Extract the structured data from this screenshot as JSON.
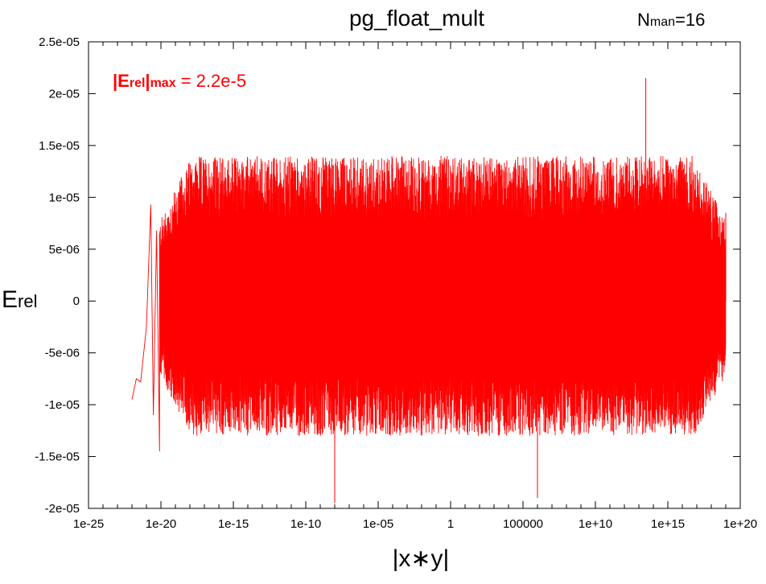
{
  "chart_data": {
    "type": "line",
    "title": "pg_float_mult",
    "corner_label": {
      "main": "N",
      "sub": "man",
      "value": "=16"
    },
    "xlabel": "|x∗y|",
    "ylabel": {
      "main": "E",
      "sub": "rel"
    },
    "annotation": {
      "main": "|E",
      "sub1": "rel",
      "mid": "|",
      "sub2": "max",
      "value": " = 2.2e-5"
    },
    "x_scale": "log",
    "xlim": [
      1e-25,
      1e+20
    ],
    "ylim": [
      -2e-05,
      2.5e-05
    ],
    "grid": false,
    "legend": "none",
    "x_ticks": [
      {
        "value": 1e-25,
        "label": "1e-25"
      },
      {
        "value": 1e-20,
        "label": "1e-20"
      },
      {
        "value": 1e-15,
        "label": "1e-15"
      },
      {
        "value": 1e-10,
        "label": "1e-10"
      },
      {
        "value": 1e-05,
        "label": "1e-05"
      },
      {
        "value": 1,
        "label": "1"
      },
      {
        "value": 100000,
        "label": "100000"
      },
      {
        "value": 10000000000.0,
        "label": "1e+10"
      },
      {
        "value": 1000000000000000.0,
        "label": "1e+15"
      },
      {
        "value": 1e+20,
        "label": "1e+20"
      }
    ],
    "y_ticks": [
      {
        "value": 2.5e-05,
        "label": "2.5e-05"
      },
      {
        "value": 2e-05,
        "label": "2e-05"
      },
      {
        "value": 1.5e-05,
        "label": "1.5e-05"
      },
      {
        "value": 1e-05,
        "label": "1e-05"
      },
      {
        "value": 5e-06,
        "label": "5e-06"
      },
      {
        "value": 0,
        "label": "0"
      },
      {
        "value": -5e-06,
        "label": "-5e-06"
      },
      {
        "value": -1e-05,
        "label": "-1e-05"
      },
      {
        "value": -1.5e-05,
        "label": "-1.5e-05"
      },
      {
        "value": -2e-05,
        "label": "-2e-05"
      }
    ],
    "series": [
      {
        "color": "#ff0000",
        "x_range": [
          1e-22,
          1e+19
        ],
        "typical_band": [
          -1.3e-05,
          1.4e-05
        ],
        "extreme_range": [
          -1.95e-05,
          2.15e-05
        ],
        "points": [
          {
            "x": 1e-22,
            "y": -9.5e-06
          },
          {
            "x": 2e-22,
            "y": -7.5e-06
          },
          {
            "x": 4e-22,
            "y": -7.8e-06
          },
          {
            "x": 1e-21,
            "y": -2.5e-06
          },
          {
            "x": 2e-21,
            "y": 9.3e-06
          },
          {
            "x": 3e-21,
            "y": -1.1e-05
          },
          {
            "x": 5e-21,
            "y": 6.8e-06
          },
          {
            "x": 8e-21,
            "y": -1.45e-05
          },
          {
            "x": 30000000000000.0,
            "y": 2.15e-05
          },
          {
            "x": 1e-08,
            "y": -1.95e-05
          },
          {
            "x": 1000000.0,
            "y": -1.9e-05
          },
          {
            "x": 1e+19,
            "y": 8.5e-06
          }
        ]
      }
    ]
  }
}
